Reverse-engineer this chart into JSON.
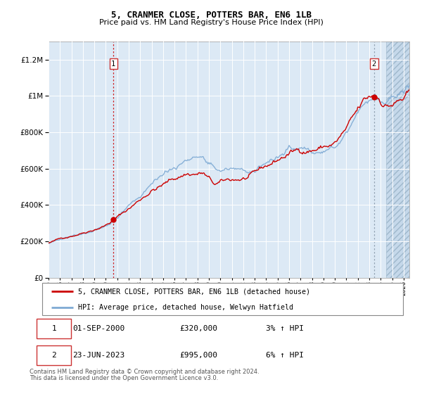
{
  "title": "5, CRANMER CLOSE, POTTERS BAR, EN6 1LB",
  "subtitle": "Price paid vs. HM Land Registry's House Price Index (HPI)",
  "legend_line1": "5, CRANMER CLOSE, POTTERS BAR, EN6 1LB (detached house)",
  "legend_line2": "HPI: Average price, detached house, Welwyn Hatfield",
  "annotation1_label": "1",
  "annotation1_date": "01-SEP-2000",
  "annotation1_price": "£320,000",
  "annotation1_hpi": "3% ↑ HPI",
  "annotation2_label": "2",
  "annotation2_date": "23-JUN-2023",
  "annotation2_price": "£995,000",
  "annotation2_hpi": "6% ↑ HPI",
  "footnote1": "Contains HM Land Registry data © Crown copyright and database right 2024.",
  "footnote2": "This data is licensed under the Open Government Licence v3.0.",
  "sale1_year": 2000.67,
  "sale1_value": 320000,
  "sale2_year": 2023.48,
  "sale2_value": 995000,
  "xmin": 1995.0,
  "xmax": 2026.5,
  "ymin": 0,
  "ymax": 1300000,
  "hatch_start": 2024.5,
  "bg_color": "#dce9f5",
  "line_color_red": "#cc0000",
  "line_color_blue": "#7eaad4",
  "grid_color": "#ffffff",
  "title_fontsize": 9,
  "subtitle_fontsize": 8
}
